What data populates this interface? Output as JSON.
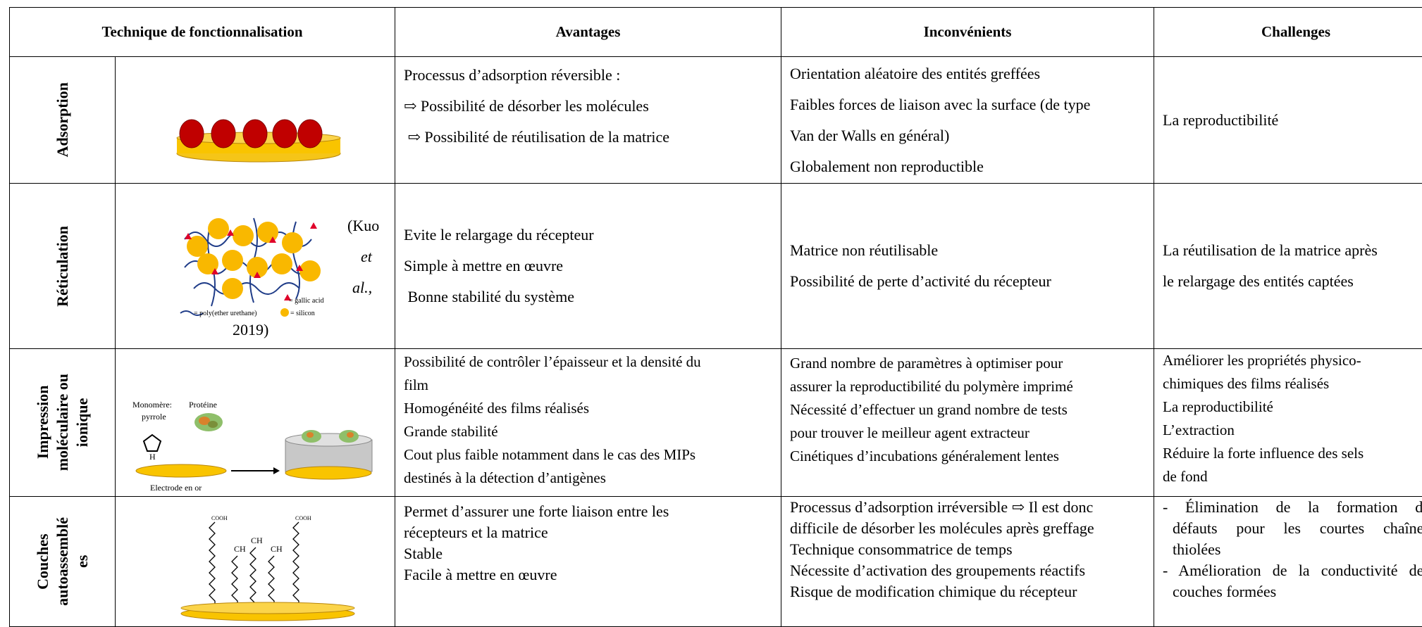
{
  "header": {
    "columns": [
      "Technique de fonctionnalisation",
      "Avantages",
      "Inconvénients",
      "Challenges"
    ]
  },
  "rows": [
    {
      "technique": [
        "Adsorption"
      ],
      "avantages": [
        "Processus d’adsorption réversible :",
        "⇨ Possibilité de désorber les molécules",
        " ⇨ Possibilité de réutilisation de la matrice"
      ],
      "inconvenients": [
        "Orientation aléatoire des entités greffées",
        "Faibles forces de liaison avec la surface (de type",
        "Van der Walls en général)",
        "Globalement non reproductible"
      ],
      "challenges": [
        "La reproductibilité"
      ]
    },
    {
      "technique": [
        "Réticulation"
      ],
      "figure": {
        "legend": [
          "= gallic acid",
          "= poly(ether urethane)",
          "= silicon"
        ]
      },
      "citation": [
        "(Kuo",
        "et",
        "al.,",
        "2019)"
      ],
      "avantages": [
        "Evite le relargage du récepteur",
        "Simple à mettre en œuvre",
        " Bonne stabilité du système"
      ],
      "inconvenients": [
        "Matrice non réutilisable",
        "Possibilité de perte d’activité du récepteur"
      ],
      "challenges": [
        "La réutilisation de la matrice après",
        "le relargage des entités captées"
      ]
    },
    {
      "technique": [
        "Impression",
        "moléculaire ou",
        "ionique"
      ],
      "figure": {
        "labels": [
          "Monomère:",
          "pyrrole",
          "Protéine",
          "H",
          "Electrode en or"
        ]
      },
      "avantages": [
        "Possibilité de contrôler l’épaisseur et la densité du",
        "film",
        "Homogénéité des films réalisés",
        "Grande stabilité",
        "Cout plus faible notamment dans le cas des MIPs",
        "destinés à la détection d’antigènes"
      ],
      "inconvenients": [
        "Grand nombre de paramètres à optimiser pour",
        "assurer la reproductibilité du polymère imprimé",
        "Nécessité d’effectuer un grand nombre de tests",
        "pour trouver le meilleur agent extracteur",
        "Cinétiques d’incubations généralement lentes"
      ],
      "challenges": [
        "Améliorer les propriétés physico-",
        "chimiques des films réalisés",
        "La reproductibilité",
        "L’extraction",
        "Réduire la forte influence des sels",
        "de fond"
      ]
    },
    {
      "technique": [
        "Couches",
        "autoassemblé",
        "es"
      ],
      "figure": {
        "labels": [
          "COOH",
          "COOH",
          "CH",
          "CH",
          "CH"
        ]
      },
      "avantages": [
        "Permet d’assurer une forte liaison entre les",
        "récepteurs et la matrice",
        "Stable",
        "Facile à mettre en œuvre"
      ],
      "inconvenients": [
        "Processus d’adsorption irréversible ⇨ Il est donc",
        "difficile de désorber les molécules après greffage",
        "Technique consommatrice de temps",
        "Nécessite d’activation des groupements réactifs",
        "Risque de modification chimique du récepteur"
      ],
      "challenges": [
        "- Élimination de la formation de",
        "défauts pour les courtes chaînes",
        "thiolées",
        "- Amélioration de la conductivité des",
        "couches formées"
      ]
    }
  ]
}
